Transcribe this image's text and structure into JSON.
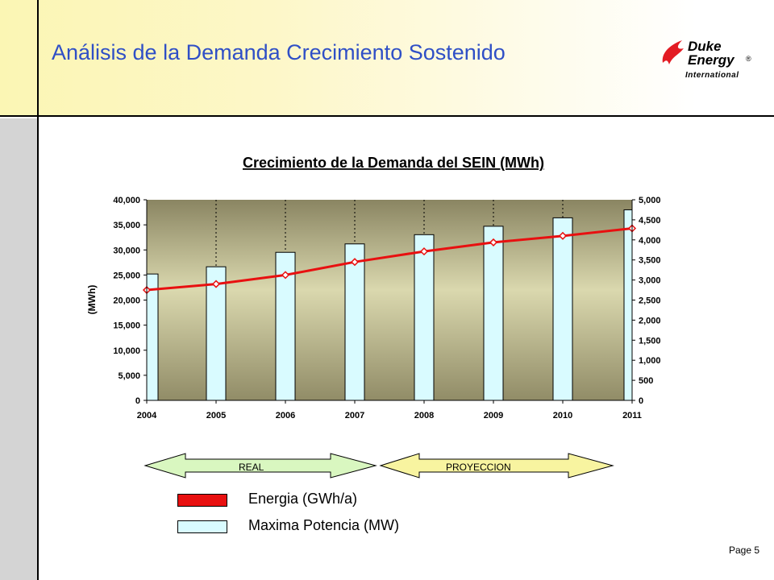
{
  "header": {
    "title": "Análisis de la Demanda Crecimiento Sostenido"
  },
  "logo": {
    "line1": "Duke",
    "line2": "Energy",
    "registered": "®",
    "line3": "International",
    "flame_color": "#e31b23"
  },
  "footer": {
    "page": "Page 5"
  },
  "arrows": {
    "real_label": "REAL",
    "projection_label": "PROYECCION",
    "real_color": "#d9f7c0",
    "projection_color": "#f8f4a0"
  },
  "legend": [
    {
      "label": "Energia (GWh/a)",
      "color": "#e81010"
    },
    {
      "label": "Maxima Potencia (MW)",
      "color": "#d9fbff"
    }
  ],
  "chart_data": {
    "type": "bar",
    "title": "Crecimiento de la Demanda del SEIN (MWh)",
    "ylabel": "(MWh)",
    "categories": [
      "2004",
      "2005",
      "2006",
      "2007",
      "2008",
      "2009",
      "2010",
      "2011"
    ],
    "ylim_left": [
      0,
      40000
    ],
    "ylim_right": [
      0,
      5000
    ],
    "left_ticks": [
      "0",
      "5,000",
      "10,000",
      "15,000",
      "20,000",
      "25,000",
      "30,000",
      "35,000",
      "40,000"
    ],
    "right_ticks": [
      "0",
      "500",
      "1,000",
      "1,500",
      "2,000",
      "2,500",
      "3,000",
      "3,500",
      "4,000",
      "4,500",
      "5,000"
    ],
    "grid": "vertical dotted",
    "series": [
      {
        "name": "Energia (GWh/a)",
        "type": "line",
        "axis": "left",
        "color": "#e81010",
        "values": [
          22000,
          23200,
          25000,
          27600,
          29700,
          31500,
          32800,
          34300
        ]
      },
      {
        "name": "Maxima Potencia (MW)",
        "type": "bar",
        "axis": "right",
        "color": "#d9fbff",
        "values": [
          3150,
          3330,
          3690,
          3900,
          4130,
          4340,
          4550,
          4750
        ]
      }
    ]
  }
}
